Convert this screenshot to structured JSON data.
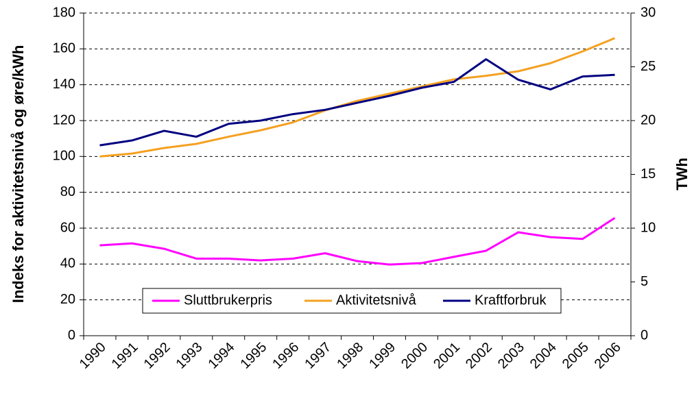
{
  "chart_data": {
    "type": "line",
    "ylabel": "Indeks for aktivitetsnivå og øre/kWh",
    "y2label": "TWh",
    "categories": [
      "1990",
      "1991",
      "1992",
      "1993",
      "1994",
      "1995",
      "1996",
      "1997",
      "1998",
      "1999",
      "2000",
      "2001",
      "2002",
      "2003",
      "2004",
      "2005",
      "2006"
    ],
    "series": [
      {
        "name": "Sluttbrukerpris",
        "color": "#ff00ff",
        "values": [
          50.4,
          51.5,
          48.5,
          43,
          43,
          42,
          43,
          46,
          41.6,
          39.7,
          40.5,
          44,
          47.4,
          57.7,
          55,
          54,
          65.7
        ]
      },
      {
        "name": "Aktivitetsnivå",
        "color": "#f4a020",
        "values": [
          100,
          101.6,
          104.7,
          107,
          111,
          114.6,
          119,
          125.7,
          131,
          135,
          139,
          143,
          145,
          147.5,
          152,
          158.6,
          166
        ]
      },
      {
        "name": "Kraftforbruk",
        "color": "#000080",
        "axis": "y2",
        "values": [
          17.7,
          18.15,
          19.05,
          18.5,
          19.7,
          20,
          20.6,
          21,
          21.65,
          22.3,
          23.05,
          23.6,
          25.7,
          23.8,
          22.9,
          24.1,
          24.25
        ]
      }
    ],
    "ylim": [
      0,
      180
    ],
    "yticks": [
      0,
      20,
      40,
      60,
      80,
      100,
      120,
      140,
      160,
      180
    ],
    "y2lim": [
      0,
      30
    ],
    "y2ticks": [
      0,
      5,
      10,
      15,
      20,
      25,
      30
    ],
    "grid": true,
    "legend": "bottom"
  }
}
